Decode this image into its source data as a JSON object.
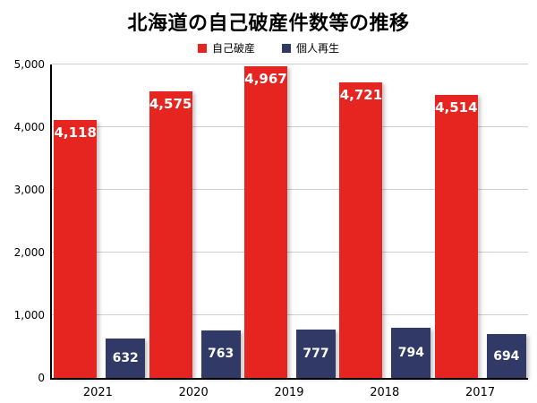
{
  "chart_data": {
    "type": "bar",
    "title": "北海道の自己破産件数等の推移",
    "categories": [
      "2021",
      "2020",
      "2019",
      "2018",
      "2017"
    ],
    "series": [
      {
        "name": "自己破産",
        "color": "#e62520",
        "values": [
          4118,
          4575,
          4967,
          4721,
          4514
        ],
        "labels": [
          "4,118",
          "4,575",
          "4,967",
          "4,721",
          "4,514"
        ]
      },
      {
        "name": "個人再生",
        "color": "#313a66",
        "values": [
          632,
          763,
          777,
          794,
          694
        ],
        "labels": [
          "632",
          "763",
          "777",
          "794",
          "694"
        ]
      }
    ],
    "ylim": [
      0,
      5000
    ],
    "ytick_interval": 1000,
    "yticks": [
      "0",
      "1,000",
      "2,000",
      "3,000",
      "4,000",
      "5,000"
    ],
    "grid": true,
    "legend_position": "top",
    "background": "#ffffff"
  }
}
